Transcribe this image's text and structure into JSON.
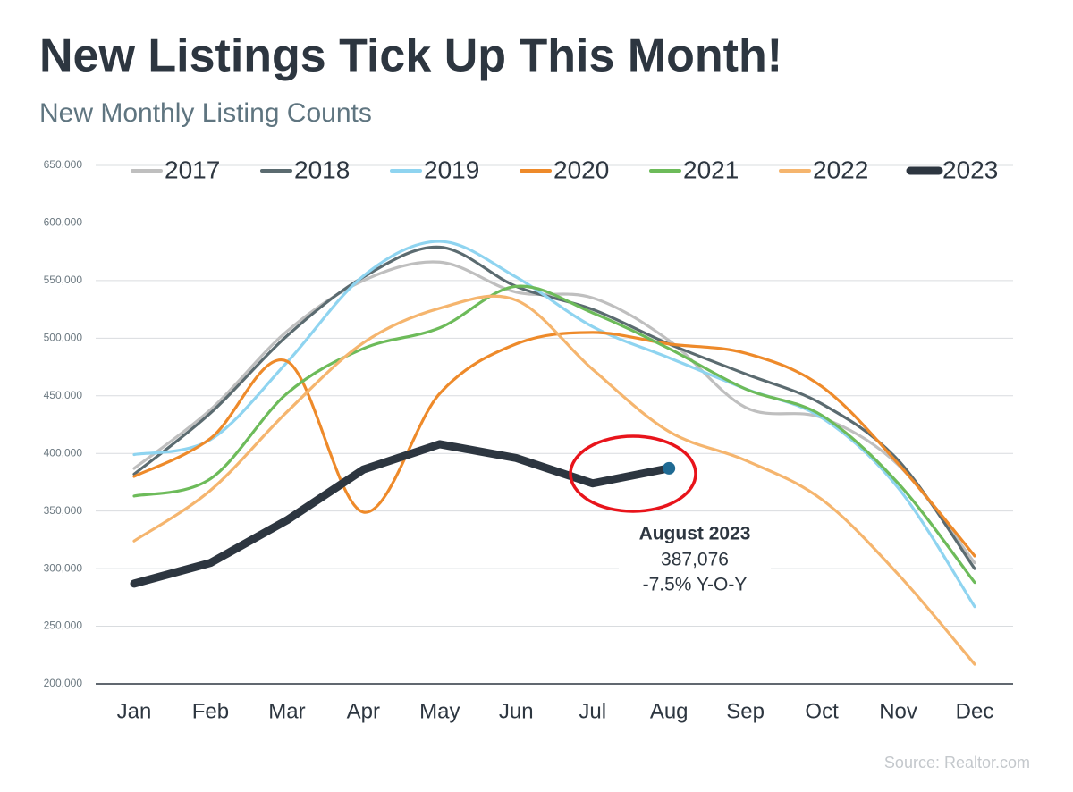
{
  "chart_data": {
    "type": "line",
    "title": "New Listings Tick Up This Month!",
    "subtitle": "New Monthly Listing Counts",
    "source": "Source: Realtor.com",
    "categories": [
      "Jan",
      "Feb",
      "Mar",
      "Apr",
      "May",
      "Jun",
      "Jul",
      "Aug",
      "Sep",
      "Oct",
      "Nov",
      "Dec"
    ],
    "series": [
      {
        "name": "2017",
        "color": "#bfbfbf",
        "values": [
          387000,
          438000,
          506000,
          550000,
          566000,
          540000,
          535000,
          498000,
          440000,
          431000,
          390000,
          305000
        ]
      },
      {
        "name": "2018",
        "color": "#5b6b70",
        "values": [
          382000,
          435000,
          502000,
          553000,
          579000,
          545000,
          525000,
          495000,
          469000,
          443000,
          394000,
          300000
        ]
      },
      {
        "name": "2019",
        "color": "#8fd4f0",
        "values": [
          399000,
          412000,
          479000,
          554000,
          584000,
          553000,
          510000,
          483000,
          456000,
          431000,
          370000,
          267000
        ]
      },
      {
        "name": "2020",
        "color": "#ee8a2a",
        "values": [
          380000,
          413000,
          480000,
          349000,
          452000,
          495000,
          505000,
          495000,
          487000,
          458000,
          391000,
          311000
        ]
      },
      {
        "name": "2021",
        "color": "#6dbb5a",
        "values": [
          363000,
          378000,
          452000,
          491000,
          509000,
          545000,
          522000,
          491000,
          456000,
          433000,
          374000,
          288000
        ]
      },
      {
        "name": "2022",
        "color": "#f5b56e",
        "values": [
          324000,
          368000,
          436000,
          496000,
          526000,
          533000,
          473000,
          419000,
          394000,
          360000,
          295000,
          217000
        ]
      },
      {
        "name": "2023",
        "color": "#2d3640",
        "values": [
          287000,
          305000,
          342000,
          386000,
          408000,
          396000,
          374000,
          387076,
          null,
          null,
          null,
          null
        ]
      }
    ],
    "annotation": {
      "lines": [
        "August 2023",
        "387,076",
        "-7.5% Y-O-Y"
      ]
    },
    "ylim": [
      200000,
      650000
    ],
    "yticks": [
      {
        "value": 200000,
        "label": "200,000"
      },
      {
        "value": 250000,
        "label": "250,000"
      },
      {
        "value": 300000,
        "label": "300,000"
      },
      {
        "value": 350000,
        "label": "350,000"
      },
      {
        "value": 400000,
        "label": "400,000"
      },
      {
        "value": 450000,
        "label": "450,000"
      },
      {
        "value": 500000,
        "label": "500,000"
      },
      {
        "value": 550000,
        "label": "550,000"
      },
      {
        "value": 600000,
        "label": "600,000"
      },
      {
        "value": 650000,
        "label": "650,000"
      }
    ],
    "grid": true
  }
}
